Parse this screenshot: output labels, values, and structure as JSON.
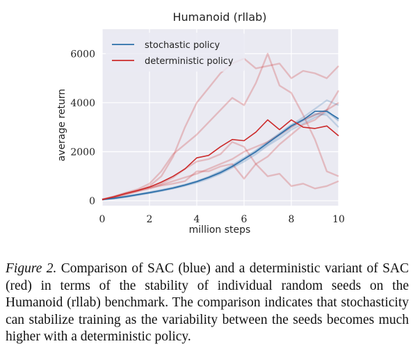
{
  "chart_data": {
    "type": "line",
    "title": "Humanoid (rllab)",
    "xlabel": "million steps",
    "ylabel": "average return",
    "xlim": [
      0,
      10
    ],
    "ylim": [
      -200,
      7000
    ],
    "xticks": [
      0,
      2,
      4,
      6,
      8,
      10
    ],
    "yticks": [
      0,
      2000,
      4000,
      6000
    ],
    "grid": true,
    "legend_position": "top-left",
    "colors": {
      "stochastic": "#2b6ea8",
      "deterministic": "#cc2a2a",
      "background": "#eaeaf2"
    },
    "x": [
      0,
      0.5,
      1,
      1.5,
      2,
      2.5,
      3,
      3.5,
      4,
      4.5,
      5,
      5.5,
      6,
      6.5,
      7,
      7.5,
      8,
      8.5,
      9,
      9.5,
      10
    ],
    "series": [
      {
        "name": "stochastic policy",
        "values": [
          50,
          100,
          170,
          250,
          330,
          420,
          520,
          640,
          780,
          950,
          1150,
          1400,
          1700,
          2000,
          2350,
          2700,
          3050,
          3300,
          3650,
          3650,
          3350
        ],
        "seeds": [
          [
            50,
            90,
            150,
            230,
            310,
            400,
            500,
            610,
            740,
            900,
            1100,
            1350,
            1600,
            1900,
            2250,
            2550,
            2900,
            3150,
            3400,
            3600,
            3300
          ],
          [
            50,
            110,
            180,
            260,
            350,
            440,
            540,
            660,
            800,
            980,
            1200,
            1450,
            1750,
            2050,
            2400,
            2750,
            3100,
            3400,
            3750,
            4100,
            3900
          ],
          [
            50,
            100,
            160,
            240,
            320,
            410,
            510,
            630,
            770,
            940,
            1130,
            1380,
            1680,
            1980,
            2300,
            2650,
            3000,
            3250,
            3500,
            3700,
            3250
          ],
          [
            50,
            105,
            175,
            255,
            340,
            430,
            530,
            650,
            790,
            960,
            1170,
            1420,
            1720,
            2030,
            2380,
            2720,
            3080,
            3320,
            3550,
            3500,
            3000
          ]
        ]
      },
      {
        "name": "deterministic policy",
        "values": [
          50,
          160,
          300,
          420,
          560,
          760,
          1000,
          1300,
          1750,
          1850,
          2200,
          2500,
          2450,
          2800,
          3300,
          2900,
          3300,
          3000,
          2950,
          3050,
          2650
        ],
        "seeds": [
          [
            50,
            150,
            280,
            400,
            600,
            1000,
            1800,
            3000,
            4000,
            4600,
            5200,
            5600,
            5800,
            5400,
            5500,
            5600,
            5000,
            5300,
            5200,
            5000,
            5500
          ],
          [
            50,
            180,
            330,
            470,
            700,
            1200,
            1900,
            2300,
            2700,
            3200,
            3700,
            4200,
            3900,
            4800,
            6000,
            4700,
            4400,
            3500,
            2500,
            1200,
            1000
          ],
          [
            50,
            130,
            250,
            380,
            500,
            650,
            800,
            950,
            1100,
            1300,
            1500,
            1700,
            2000,
            2200,
            2400,
            2700,
            3000,
            3300,
            3500,
            3700,
            4000
          ],
          [
            50,
            170,
            310,
            430,
            550,
            700,
            950,
            1300,
            1600,
            1700,
            1900,
            2400,
            2200,
            1500,
            1000,
            1100,
            600,
            700,
            500,
            600,
            800
          ],
          [
            50,
            160,
            290,
            410,
            520,
            620,
            700,
            800,
            1200,
            1200,
            1400,
            1500,
            900,
            1500,
            1800,
            2300,
            2700,
            3100,
            3300,
            3700,
            4500
          ]
        ]
      }
    ]
  },
  "caption": {
    "label": "Figure 2.",
    "text": "Comparison of SAC (blue) and a deterministic variant of SAC (red) in terms of the stability of individual random seeds on the Humanoid (rllab) benchmark. The comparison indicates that stochasticity can stabilize training as the variability between the seeds becomes much higher with a deterministic policy."
  }
}
